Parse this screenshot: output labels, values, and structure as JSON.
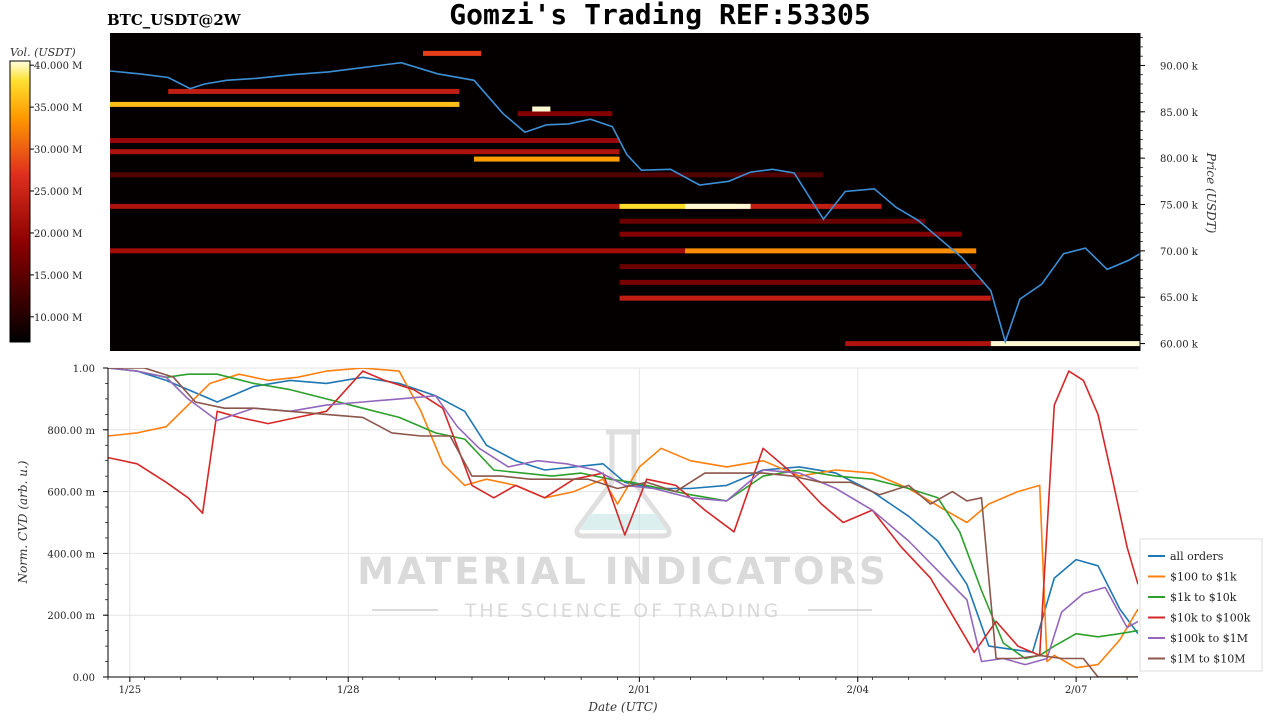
{
  "title": "Gomzi's Trading REF:53305",
  "symbol": "BTC_USDT@2W",
  "colorbar": {
    "label": "Vol. (USDT)",
    "ticks": [
      "40.000 M",
      "35.000 M",
      "30.000 M",
      "25.000 M",
      "20.000 M",
      "15.000 M",
      "10.000 M"
    ],
    "values": [
      40,
      35,
      30,
      25,
      20,
      15,
      10
    ],
    "range": [
      7,
      40.5
    ]
  },
  "watermark": {
    "line1": "MATERIAL INDICATORS",
    "line2": "THE SCIENCE OF TRADING",
    "icon": "flask-icon"
  },
  "colors": {
    "all_orders": "#1f77b4",
    "s100_1k": "#ff7f0e",
    "s1k_10k": "#2ca02c",
    "s10k_100k": "#d62728",
    "s100k_1m": "#9467bd",
    "s1m_10m": "#8c564b",
    "price_line": "#3b8fd6",
    "heatmap_bg": "#050000"
  },
  "chart_data": [
    {
      "type": "heatmap",
      "title": "",
      "ylabel": "Price (USDT)",
      "yticks": [
        "90.00 k",
        "85.00 k",
        "80.00 k",
        "75.00 k",
        "70.00 k",
        "65.00 k",
        "60.00 k"
      ],
      "ytick_values": [
        90000,
        85000,
        80000,
        75000,
        70000,
        65000,
        60000
      ],
      "ylim": [
        59200,
        93500
      ],
      "xlim": [
        0,
        14.15
      ],
      "x_unit": "days since 1/24 16:00 UTC",
      "price_series": {
        "name": "price",
        "x": [
          0,
          0.4,
          0.8,
          1.1,
          1.3,
          1.6,
          2.0,
          2.5,
          3.0,
          3.5,
          4.0,
          4.5,
          5.0,
          5.4,
          5.7,
          6.0,
          6.3,
          6.6,
          6.9,
          7.1,
          7.3,
          7.7,
          8.1,
          8.5,
          8.8,
          9.1,
          9.4,
          9.8,
          10.1,
          10.5,
          10.8,
          11.1,
          11.4,
          11.7,
          12.1,
          12.3,
          12.5,
          12.8,
          13.1,
          13.4,
          13.7,
          14.0,
          14.15
        ],
        "y": [
          89400,
          89100,
          88700,
          87500,
          88000,
          88400,
          88600,
          89000,
          89300,
          89800,
          90300,
          89100,
          88400,
          84800,
          82800,
          83600,
          83700,
          84200,
          83400,
          80400,
          78700,
          78800,
          77100,
          77500,
          78500,
          78800,
          78400,
          73400,
          76400,
          76700,
          74700,
          73300,
          71300,
          69300,
          65700,
          60200,
          64800,
          66400,
          69700,
          70300,
          68000,
          69000,
          69700
        ]
      },
      "bands": [
        {
          "y": 85800,
          "x0": 0,
          "x1": 4.8,
          "level": 36
        },
        {
          "y": 87200,
          "x0": 0.8,
          "x1": 4.8,
          "level": 24
        },
        {
          "y": 91300,
          "x0": 4.3,
          "x1": 5.1,
          "level": 28
        },
        {
          "y": 84800,
          "x0": 5.6,
          "x1": 6.9,
          "level": 18
        },
        {
          "y": 81900,
          "x0": 0,
          "x1": 7.0,
          "level": 20
        },
        {
          "y": 80700,
          "x0": 0,
          "x1": 7.0,
          "level": 22
        },
        {
          "y": 79900,
          "x0": 5.0,
          "x1": 7.0,
          "level": 34
        },
        {
          "y": 78200,
          "x0": 0,
          "x1": 9.8,
          "level": 14
        },
        {
          "y": 74800,
          "x0": 0,
          "x1": 7.0,
          "level": 22
        },
        {
          "y": 74800,
          "x0": 7.0,
          "x1": 8.6,
          "level": 38
        },
        {
          "y": 74800,
          "x0": 8.6,
          "x1": 10.6,
          "level": 24
        },
        {
          "y": 73200,
          "x0": 7.0,
          "x1": 11.2,
          "level": 16
        },
        {
          "y": 71800,
          "x0": 7.0,
          "x1": 11.7,
          "level": 18
        },
        {
          "y": 70000,
          "x0": 0,
          "x1": 7.9,
          "level": 21
        },
        {
          "y": 70000,
          "x0": 7.9,
          "x1": 11.9,
          "level": 33
        },
        {
          "y": 68300,
          "x0": 7.0,
          "x1": 11.9,
          "level": 16
        },
        {
          "y": 66600,
          "x0": 7.0,
          "x1": 12.0,
          "level": 17
        },
        {
          "y": 64900,
          "x0": 7.0,
          "x1": 12.1,
          "level": 24
        },
        {
          "y": 60000,
          "x0": 10.1,
          "x1": 12.1,
          "level": 22
        },
        {
          "y": 60000,
          "x0": 12.1,
          "x1": 14.15,
          "level": 40
        },
        {
          "y": 85300,
          "x0": 5.8,
          "x1": 6.05,
          "level": 40
        },
        {
          "y": 74800,
          "x0": 7.9,
          "x1": 8.8,
          "level": 40
        }
      ]
    },
    {
      "type": "line",
      "title": "",
      "xlabel": "Date (UTC)",
      "ylabel": "Norm. CVD (arb. u.)",
      "xticks": [
        "1/25",
        "1/28",
        "2/01",
        "2/04",
        "2/07"
      ],
      "xtick_values": [
        0.3,
        3.3,
        7.3,
        10.3,
        13.3
      ],
      "yticks": [
        "0.00",
        "200.00 m",
        "400.00 m",
        "600.00 m",
        "800.00 m",
        "1.00"
      ],
      "ytick_values": [
        0,
        0.2,
        0.4,
        0.6,
        0.8,
        1.0
      ],
      "ylim": [
        0,
        1.0
      ],
      "xlim": [
        0,
        14.15
      ],
      "grid": true,
      "legend": "right",
      "series": [
        {
          "name": "all orders",
          "x": [
            0,
            0.4,
            0.8,
            1.1,
            1.5,
            2.0,
            2.5,
            3.0,
            3.5,
            4.0,
            4.5,
            4.9,
            5.2,
            5.6,
            6.0,
            6.4,
            6.8,
            7.1,
            7.5,
            8.0,
            8.5,
            9.0,
            9.5,
            10.0,
            10.5,
            11.0,
            11.4,
            11.8,
            12.1,
            12.4,
            12.7,
            13.0,
            13.3,
            13.6,
            13.9,
            14.15
          ],
          "y": [
            1.0,
            0.99,
            0.96,
            0.93,
            0.89,
            0.94,
            0.96,
            0.95,
            0.97,
            0.95,
            0.91,
            0.86,
            0.75,
            0.7,
            0.67,
            0.68,
            0.69,
            0.63,
            0.61,
            0.61,
            0.62,
            0.67,
            0.68,
            0.66,
            0.6,
            0.52,
            0.44,
            0.3,
            0.1,
            0.09,
            0.08,
            0.32,
            0.38,
            0.36,
            0.22,
            0.14
          ]
        },
        {
          "name": "$100 to $1k",
          "x": [
            0,
            0.4,
            0.8,
            1.1,
            1.4,
            1.8,
            2.2,
            2.6,
            3.0,
            3.5,
            4.0,
            4.3,
            4.6,
            4.9,
            5.2,
            5.6,
            6.0,
            6.4,
            6.8,
            7.0,
            7.3,
            7.6,
            8.0,
            8.5,
            9.0,
            9.5,
            10.0,
            10.5,
            11.0,
            11.5,
            11.8,
            12.1,
            12.5,
            12.8,
            12.9,
            13.0,
            13.3,
            13.6,
            13.9,
            14.15
          ],
          "y": [
            0.78,
            0.79,
            0.81,
            0.88,
            0.95,
            0.98,
            0.96,
            0.97,
            0.99,
            1.0,
            0.99,
            0.86,
            0.69,
            0.62,
            0.64,
            0.62,
            0.58,
            0.6,
            0.64,
            0.56,
            0.68,
            0.74,
            0.7,
            0.68,
            0.7,
            0.65,
            0.67,
            0.66,
            0.61,
            0.54,
            0.5,
            0.56,
            0.6,
            0.62,
            0.05,
            0.07,
            0.03,
            0.04,
            0.12,
            0.22
          ]
        },
        {
          "name": "$1k to $10k",
          "x": [
            0,
            0.4,
            0.8,
            1.1,
            1.5,
            2.0,
            2.5,
            3.0,
            3.5,
            4.0,
            4.5,
            4.9,
            5.3,
            5.7,
            6.1,
            6.5,
            6.9,
            7.2,
            7.6,
            8.0,
            8.5,
            9.0,
            9.5,
            10.0,
            10.5,
            11.0,
            11.4,
            11.7,
            12.0,
            12.3,
            12.6,
            12.8,
            13.0,
            13.3,
            13.6,
            13.9,
            14.15
          ],
          "y": [
            1.0,
            0.99,
            0.97,
            0.98,
            0.98,
            0.95,
            0.93,
            0.9,
            0.87,
            0.84,
            0.79,
            0.77,
            0.67,
            0.66,
            0.65,
            0.66,
            0.64,
            0.63,
            0.61,
            0.59,
            0.57,
            0.65,
            0.67,
            0.65,
            0.64,
            0.61,
            0.58,
            0.47,
            0.28,
            0.11,
            0.06,
            0.07,
            0.1,
            0.14,
            0.13,
            0.14,
            0.15
          ]
        },
        {
          "name": "$10k to $100k",
          "x": [
            0,
            0.4,
            0.8,
            1.1,
            1.3,
            1.5,
            1.8,
            2.2,
            2.6,
            3.0,
            3.5,
            3.8,
            4.2,
            4.6,
            5.0,
            5.3,
            5.6,
            6.0,
            6.4,
            6.8,
            7.1,
            7.4,
            7.8,
            8.2,
            8.6,
            9.0,
            9.4,
            9.8,
            10.1,
            10.5,
            10.9,
            11.3,
            11.6,
            11.9,
            12.2,
            12.5,
            12.8,
            13.0,
            13.2,
            13.4,
            13.6,
            13.8,
            14.0,
            14.15
          ],
          "y": [
            0.71,
            0.69,
            0.63,
            0.58,
            0.53,
            0.86,
            0.84,
            0.82,
            0.84,
            0.86,
            0.99,
            0.96,
            0.93,
            0.87,
            0.62,
            0.58,
            0.62,
            0.58,
            0.64,
            0.66,
            0.46,
            0.64,
            0.62,
            0.54,
            0.47,
            0.74,
            0.66,
            0.56,
            0.5,
            0.54,
            0.42,
            0.32,
            0.2,
            0.08,
            0.18,
            0.1,
            0.07,
            0.88,
            0.99,
            0.96,
            0.85,
            0.64,
            0.42,
            0.3
          ]
        },
        {
          "name": "$100k to $1M",
          "x": [
            0,
            0.4,
            0.8,
            1.1,
            1.5,
            2.0,
            2.5,
            3.0,
            3.5,
            4.0,
            4.5,
            4.8,
            5.1,
            5.5,
            5.9,
            6.3,
            6.7,
            7.1,
            7.5,
            8.0,
            8.5,
            9.0,
            9.5,
            10.0,
            10.5,
            11.0,
            11.5,
            11.8,
            12.0,
            12.3,
            12.6,
            12.9,
            13.1,
            13.4,
            13.7,
            14.0,
            14.15
          ],
          "y": [
            1.0,
            0.99,
            0.97,
            0.9,
            0.83,
            0.87,
            0.86,
            0.88,
            0.89,
            0.9,
            0.91,
            0.81,
            0.74,
            0.68,
            0.7,
            0.69,
            0.67,
            0.62,
            0.61,
            0.58,
            0.57,
            0.67,
            0.66,
            0.61,
            0.54,
            0.44,
            0.32,
            0.25,
            0.05,
            0.06,
            0.04,
            0.06,
            0.21,
            0.27,
            0.29,
            0.16,
            0.18
          ]
        },
        {
          "name": "$1M to $10M",
          "x": [
            0,
            0.5,
            0.9,
            1.2,
            1.6,
            2.0,
            2.5,
            3.0,
            3.5,
            3.9,
            4.3,
            4.7,
            5.0,
            5.4,
            5.8,
            6.2,
            6.6,
            7.0,
            7.4,
            7.8,
            8.2,
            8.6,
            9.0,
            9.4,
            9.8,
            10.2,
            10.6,
            11.0,
            11.3,
            11.6,
            11.8,
            12.0,
            12.2,
            12.5,
            12.8,
            13.1,
            13.4,
            13.6,
            13.8,
            14.0,
            14.15
          ],
          "y": [
            1.0,
            1.0,
            0.97,
            0.89,
            0.87,
            0.87,
            0.86,
            0.85,
            0.84,
            0.79,
            0.78,
            0.78,
            0.65,
            0.65,
            0.64,
            0.64,
            0.64,
            0.61,
            0.63,
            0.6,
            0.66,
            0.66,
            0.66,
            0.65,
            0.63,
            0.63,
            0.59,
            0.62,
            0.56,
            0.6,
            0.57,
            0.58,
            0.06,
            0.06,
            0.07,
            0.06,
            0.06,
            0.0,
            0.0,
            0.0,
            0.0
          ]
        }
      ]
    }
  ]
}
